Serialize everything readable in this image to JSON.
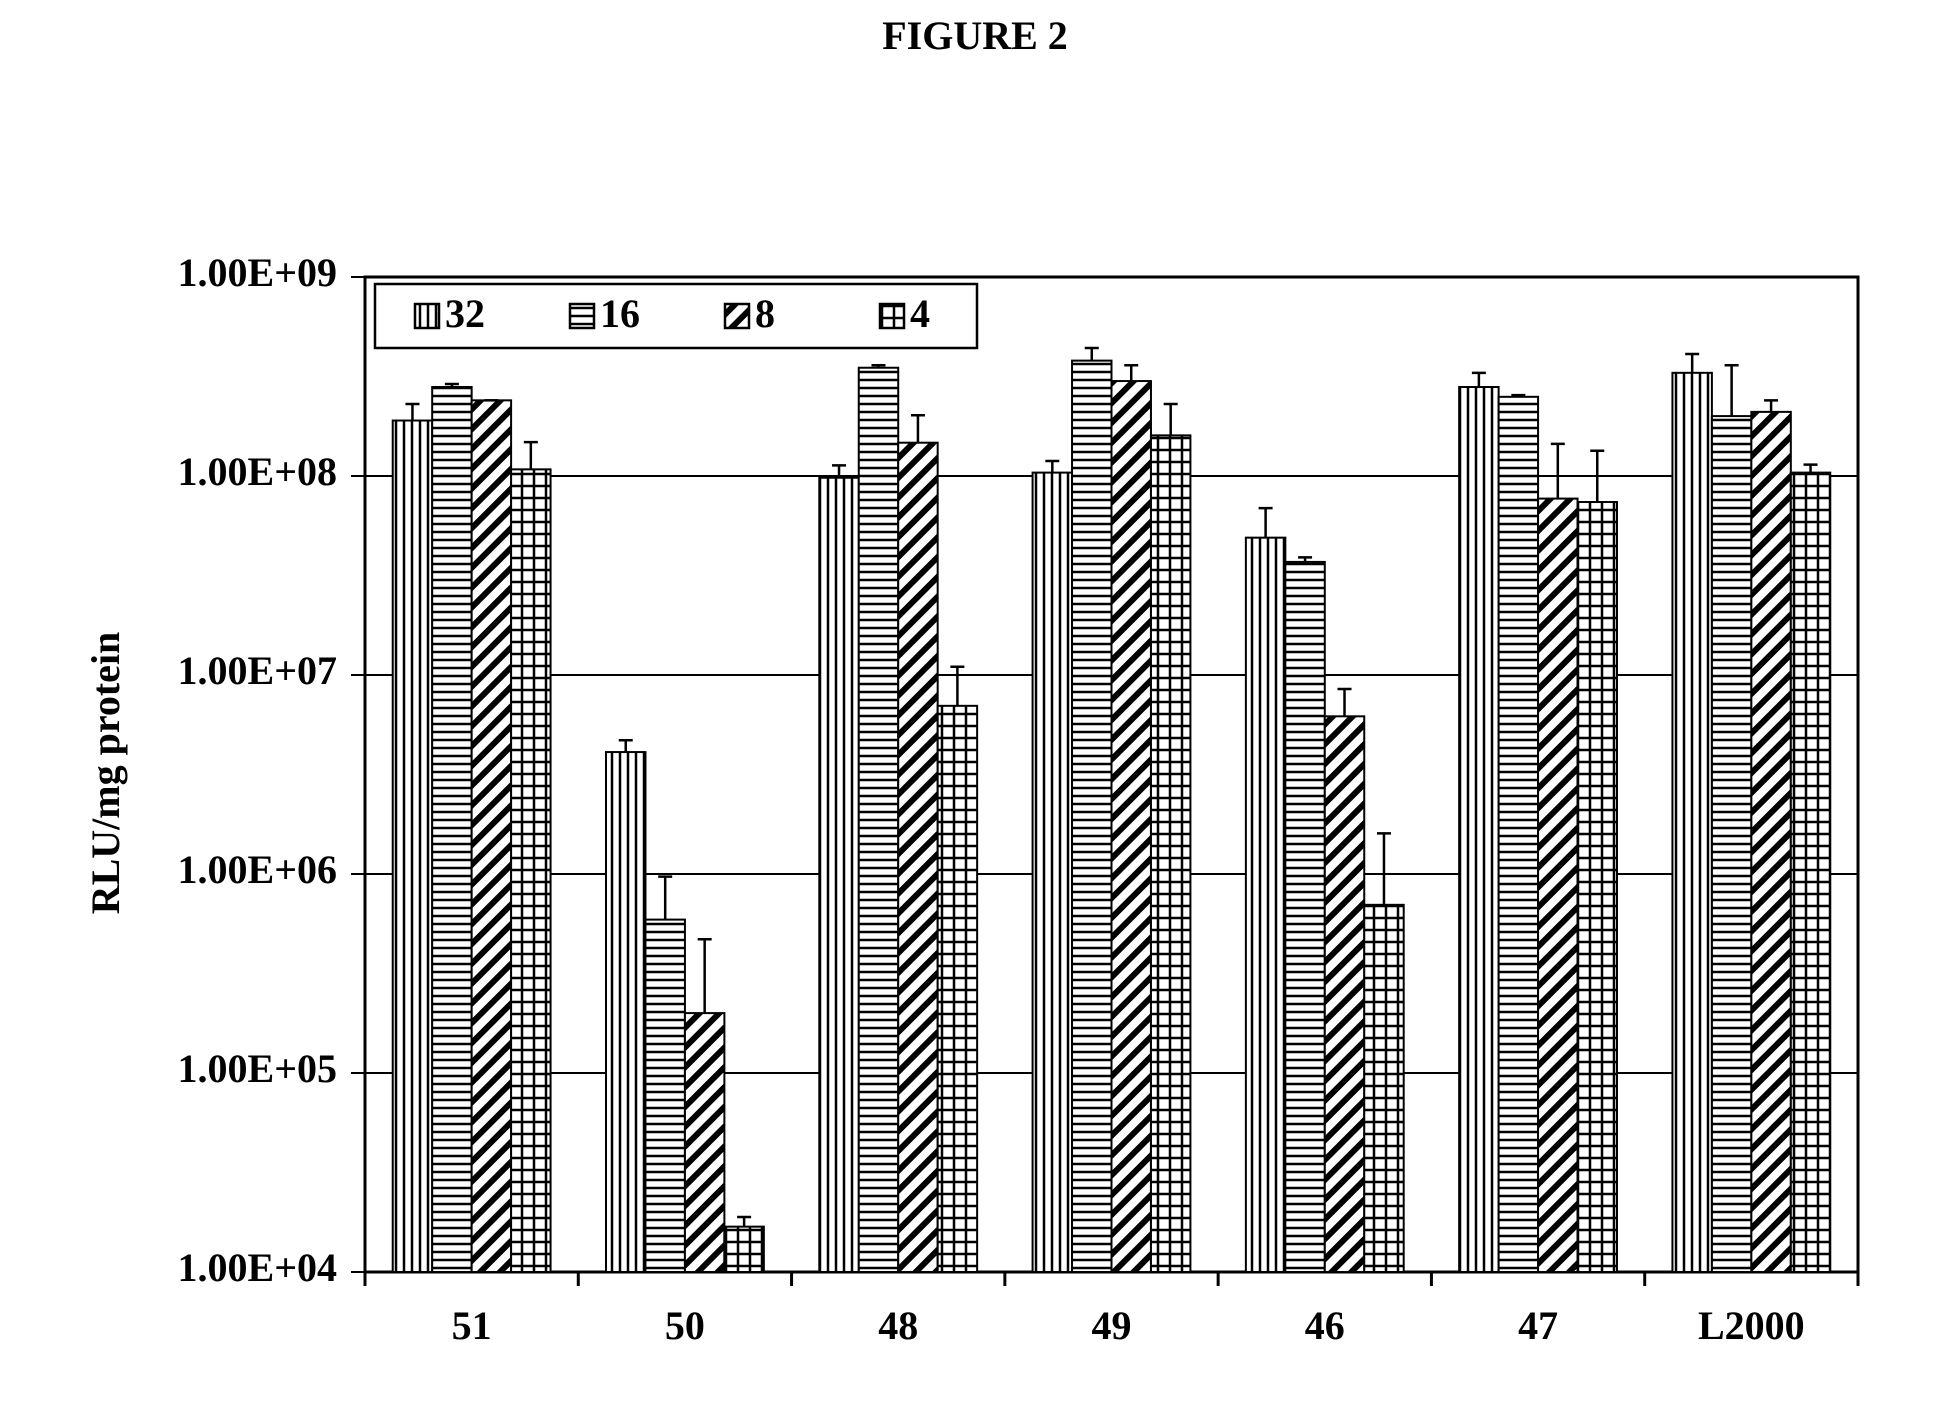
{
  "chart_data": {
    "type": "bar",
    "title": "FIGURE 2",
    "y_label": "RLU/mg protein",
    "log_scale": true,
    "grid": true,
    "legend": "top-left",
    "categories": [
      "51",
      "50",
      "48",
      "49",
      "46",
      "47",
      "L2000"
    ],
    "ylim": [
      10000,
      1000000000
    ],
    "yticks": [
      {
        "value": 10000,
        "label": "1.00E+04"
      },
      {
        "value": 100000,
        "label": "1.00E+05"
      },
      {
        "value": 1000000,
        "label": "1.00E+06"
      },
      {
        "value": 10000000,
        "label": "1.00E+07"
      },
      {
        "value": 100000000,
        "label": "1.00E+08"
      },
      {
        "value": 1000000000,
        "label": "1.00E+09"
      }
    ],
    "series": [
      {
        "name": "32",
        "color": "#000000",
        "pattern": "vertical",
        "values": [
          190000000,
          4100000,
          98000000,
          104000000,
          49000000,
          280000000,
          330000000
        ],
        "errors": [
          40000000,
          600000,
          15000000,
          15000000,
          20000000,
          50000000,
          80000000
        ]
      },
      {
        "name": "16",
        "color": "#000000",
        "pattern": "horizontal",
        "values": [
          280000000,
          590000,
          350000000,
          380000000,
          37000000,
          250000000,
          200000000
        ],
        "errors": [
          10000000,
          380000,
          10000000,
          60000000,
          2000000,
          5000000,
          160000000
        ]
      },
      {
        "name": "8",
        "color": "#000000",
        "pattern": "diagonal",
        "values": [
          240000000,
          200000,
          147000000,
          300000000,
          6200000,
          77000000,
          210000000
        ],
        "errors": [
          0,
          270000,
          55000000,
          60000000,
          2300000,
          68000000,
          30000000
        ]
      },
      {
        "name": "4",
        "color": "#000000",
        "pattern": "grid",
        "values": [
          108000000,
          16900,
          7000000,
          160000000,
          700000,
          74000000,
          104000000
        ],
        "errors": [
          40000000,
          2000,
          4000000,
          70000000,
          900000,
          60000000,
          10000000
        ]
      }
    ]
  }
}
